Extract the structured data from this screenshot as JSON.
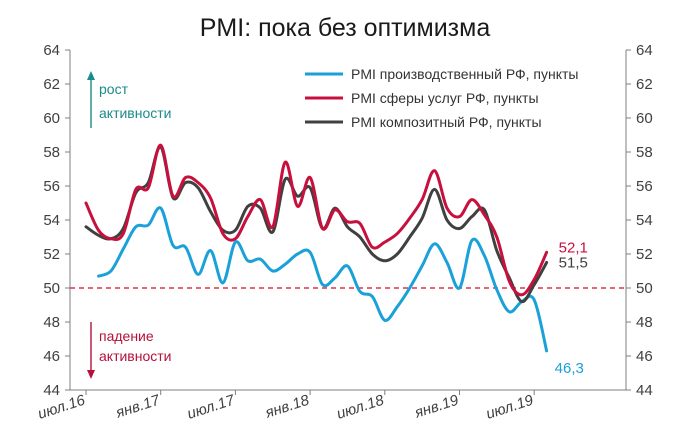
{
  "chart_data": {
    "type": "line",
    "title": "PMI: пока без оптимизма",
    "ylim": [
      44,
      64
    ],
    "yticks": [
      44,
      46,
      48,
      50,
      52,
      54,
      56,
      58,
      60,
      62,
      64
    ],
    "ytick_labels": [
      "44",
      "46",
      "48",
      "50",
      "52",
      "54",
      "56",
      "58",
      "60",
      "62",
      "64"
    ],
    "x": [
      "2016-07",
      "2016-08",
      "2016-09",
      "2016-10",
      "2016-11",
      "2016-12",
      "2017-01",
      "2017-02",
      "2017-03",
      "2017-04",
      "2017-05",
      "2017-06",
      "2017-07",
      "2017-08",
      "2017-09",
      "2017-10",
      "2017-11",
      "2017-12",
      "2018-01",
      "2018-02",
      "2018-03",
      "2018-04",
      "2018-05",
      "2018-06",
      "2018-07",
      "2018-08",
      "2018-09",
      "2018-10",
      "2018-11",
      "2018-12",
      "2019-01",
      "2019-02",
      "2019-03",
      "2019-04",
      "2019-05",
      "2019-06",
      "2019-07",
      "2019-08",
      "2019-09"
    ],
    "xtick_labels": [
      "июл.16",
      "янв.17",
      "июл.17",
      "янв.18",
      "июл.18",
      "янв.19",
      "июл.19"
    ],
    "xtick_positions": [
      "2016-07",
      "2017-01",
      "2017-07",
      "2018-01",
      "2018-07",
      "2019-01",
      "2019-07"
    ],
    "reference_line": {
      "y": 50,
      "style": "dashed",
      "color": "#e0304a"
    },
    "legend": "top-right",
    "grid": false,
    "series": [
      {
        "name": "PMI производственный РФ, пункты",
        "color": "#1ba1d9",
        "values": [
          null,
          50.7,
          51.0,
          52.3,
          53.6,
          53.7,
          54.7,
          52.5,
          52.4,
          50.8,
          52.2,
          50.3,
          52.7,
          51.6,
          51.7,
          51.0,
          51.4,
          52.0,
          52.1,
          50.2,
          50.6,
          51.3,
          49.8,
          49.5,
          48.1,
          48.9,
          50.0,
          51.3,
          52.6,
          51.5,
          50.0,
          52.8,
          51.9,
          49.9,
          48.6,
          49.2,
          49.3,
          46.3,
          null
        ],
        "end_label": "46,3"
      },
      {
        "name": "PMI сферы услуг РФ, пункты",
        "color": "#c8103e",
        "values": [
          55.0,
          53.4,
          52.9,
          53.2,
          55.8,
          55.9,
          58.4,
          55.4,
          56.5,
          56.2,
          55.3,
          53.2,
          52.9,
          54.2,
          55.2,
          53.6,
          57.4,
          54.8,
          56.5,
          53.5,
          54.6,
          53.9,
          53.8,
          52.4,
          52.7,
          53.2,
          54.1,
          55.2,
          56.9,
          54.7,
          54.2,
          55.2,
          54.3,
          53.0,
          50.4,
          49.6,
          50.5,
          52.1,
          null
        ],
        "end_label": "52,1"
      },
      {
        "name": "PMI композитный РФ, пункты",
        "color": "#404040",
        "values": [
          53.6,
          53.1,
          52.9,
          53.5,
          55.6,
          56.2,
          58.3,
          55.3,
          56.2,
          55.9,
          54.5,
          53.4,
          53.4,
          54.8,
          54.7,
          53.3,
          56.4,
          55.4,
          55.9,
          53.5,
          54.7,
          53.6,
          53.0,
          52.0,
          51.6,
          52.0,
          53.0,
          54.1,
          55.8,
          54.0,
          53.5,
          54.2,
          54.6,
          52.2,
          50.6,
          49.2,
          50.2,
          51.5,
          null
        ],
        "end_label": "51,5"
      }
    ],
    "annotations": {
      "up": [
        "рост",
        "активности"
      ],
      "down": [
        "падение",
        "активности"
      ]
    }
  }
}
